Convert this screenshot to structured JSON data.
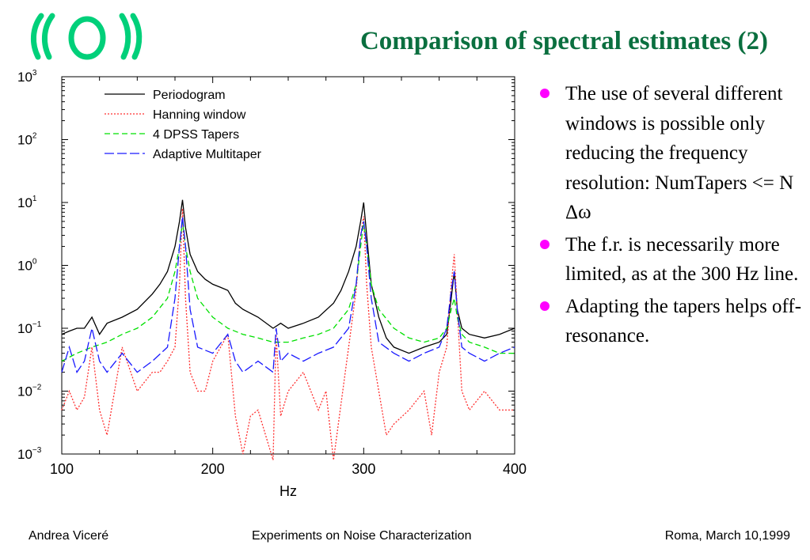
{
  "title": "Comparison of spectral estimates (2)",
  "colors": {
    "title": "#0a6f3f",
    "logo": "#00d07a",
    "bullet": "#ff00ff"
  },
  "bullets": [
    "The use of several different windows is possible only reducing the frequency resolution: NumTapers <= N Δω",
    "The f.r. is necessarily more limited, as at the 300 Hz line.",
    "Adapting the tapers helps off-resonance."
  ],
  "footer": {
    "left": "Andrea Viceré",
    "center": "Experiments on Noise Characterization",
    "right": "Roma, March 10,1999"
  },
  "chart_data": {
    "type": "line",
    "xlabel": "Hz",
    "ylabel": "",
    "xlim": [
      100,
      400
    ],
    "ylim": [
      0.001,
      1000
    ],
    "yscale": "log",
    "x_ticks": [
      100,
      200,
      300,
      400
    ],
    "x_tick_labels": [
      "100",
      "200",
      "300",
      "400"
    ],
    "y_ticks": [
      1000,
      100,
      10,
      1,
      0.1,
      0.01,
      0.001
    ],
    "y_tick_labels": [
      {
        "base": "10",
        "exp": "3"
      },
      {
        "base": "10",
        "exp": "2"
      },
      {
        "base": "10",
        "exp": "1"
      },
      {
        "base": "10",
        "exp": "0"
      },
      {
        "base": "10",
        "exp": "−1"
      },
      {
        "base": "10",
        "exp": "−2"
      },
      {
        "base": "10",
        "exp": "−3"
      }
    ],
    "legend_position": "top-left",
    "series": [
      {
        "name": "Periodogram",
        "color": "#000000",
        "dash": "solid",
        "x": [
          100,
          105,
          110,
          115,
          120,
          125,
          130,
          140,
          150,
          160,
          165,
          170,
          175,
          178,
          180,
          182,
          185,
          190,
          195,
          200,
          205,
          210,
          215,
          220,
          230,
          240,
          245,
          250,
          260,
          270,
          280,
          285,
          290,
          295,
          298,
          300,
          302,
          305,
          310,
          315,
          320,
          330,
          340,
          350,
          355,
          358,
          360,
          362,
          365,
          370,
          380,
          390,
          400
        ],
        "y": [
          0.08,
          0.09,
          0.1,
          0.1,
          0.15,
          0.08,
          0.12,
          0.15,
          0.2,
          0.35,
          0.5,
          0.8,
          2,
          5,
          11,
          4,
          1.5,
          0.8,
          0.6,
          0.5,
          0.45,
          0.4,
          0.25,
          0.2,
          0.15,
          0.1,
          0.12,
          0.1,
          0.12,
          0.15,
          0.25,
          0.4,
          0.8,
          2,
          5,
          10,
          3,
          0.5,
          0.15,
          0.07,
          0.05,
          0.04,
          0.05,
          0.06,
          0.08,
          0.3,
          0.8,
          0.2,
          0.1,
          0.08,
          0.07,
          0.08,
          0.1
        ]
      },
      {
        "name": "Hanning window",
        "color": "#ff3030",
        "dash": "2 2",
        "x": [
          100,
          105,
          110,
          115,
          120,
          125,
          130,
          135,
          140,
          150,
          160,
          165,
          170,
          175,
          178,
          180,
          182,
          185,
          190,
          195,
          200,
          210,
          215,
          220,
          225,
          230,
          240,
          242,
          245,
          250,
          260,
          270,
          275,
          280,
          290,
          295,
          298,
          300,
          302,
          305,
          310,
          315,
          320,
          330,
          340,
          345,
          350,
          355,
          358,
          360,
          362,
          365,
          370,
          380,
          390,
          400
        ],
        "y": [
          0.005,
          0.01,
          0.005,
          0.008,
          0.05,
          0.005,
          0.002,
          0.01,
          0.05,
          0.01,
          0.02,
          0.02,
          0.03,
          0.05,
          0.5,
          8,
          0.3,
          0.02,
          0.01,
          0.01,
          0.03,
          0.08,
          0.004,
          0.001,
          0.004,
          0.005,
          0.0008,
          0.08,
          0.004,
          0.01,
          0.02,
          0.005,
          0.01,
          0.0008,
          0.05,
          0.4,
          3,
          6,
          0.5,
          0.05,
          0.01,
          0.002,
          0.003,
          0.005,
          0.01,
          0.002,
          0.02,
          0.05,
          0.5,
          1.5,
          0.2,
          0.01,
          0.005,
          0.01,
          0.005,
          0.005
        ]
      },
      {
        "name": "4 DPSS Tapers",
        "color": "#00e000",
        "dash": "7 4",
        "x": [
          100,
          110,
          120,
          130,
          140,
          150,
          160,
          170,
          175,
          178,
          180,
          182,
          185,
          190,
          200,
          210,
          220,
          230,
          240,
          245,
          250,
          260,
          270,
          280,
          290,
          295,
          298,
          300,
          302,
          305,
          310,
          320,
          330,
          340,
          350,
          355,
          358,
          360,
          362,
          365,
          370,
          380,
          390,
          400
        ],
        "y": [
          0.03,
          0.04,
          0.05,
          0.06,
          0.08,
          0.1,
          0.15,
          0.3,
          0.8,
          2,
          5,
          2,
          0.8,
          0.3,
          0.15,
          0.1,
          0.08,
          0.07,
          0.06,
          0.06,
          0.06,
          0.07,
          0.08,
          0.1,
          0.2,
          0.5,
          2,
          5,
          2,
          0.5,
          0.2,
          0.1,
          0.07,
          0.06,
          0.07,
          0.1,
          0.2,
          0.3,
          0.15,
          0.08,
          0.06,
          0.05,
          0.04,
          0.04
        ]
      },
      {
        "name": "Adaptive Multitaper",
        "color": "#1a1aff",
        "dash": "12 4",
        "x": [
          100,
          105,
          110,
          115,
          120,
          125,
          130,
          140,
          150,
          160,
          170,
          175,
          178,
          180,
          182,
          185,
          190,
          200,
          210,
          215,
          220,
          230,
          240,
          242,
          245,
          250,
          260,
          270,
          280,
          290,
          295,
          298,
          300,
          302,
          305,
          310,
          320,
          330,
          340,
          350,
          355,
          358,
          360,
          362,
          365,
          370,
          380,
          390,
          400
        ],
        "y": [
          0.02,
          0.05,
          0.02,
          0.03,
          0.1,
          0.03,
          0.02,
          0.04,
          0.02,
          0.03,
          0.05,
          0.3,
          2,
          6,
          2,
          0.2,
          0.05,
          0.04,
          0.08,
          0.03,
          0.02,
          0.03,
          0.02,
          0.1,
          0.03,
          0.04,
          0.03,
          0.04,
          0.05,
          0.1,
          0.5,
          3,
          5,
          2,
          0.3,
          0.06,
          0.04,
          0.03,
          0.04,
          0.05,
          0.1,
          0.4,
          0.8,
          0.2,
          0.05,
          0.04,
          0.03,
          0.04,
          0.05
        ]
      }
    ]
  }
}
